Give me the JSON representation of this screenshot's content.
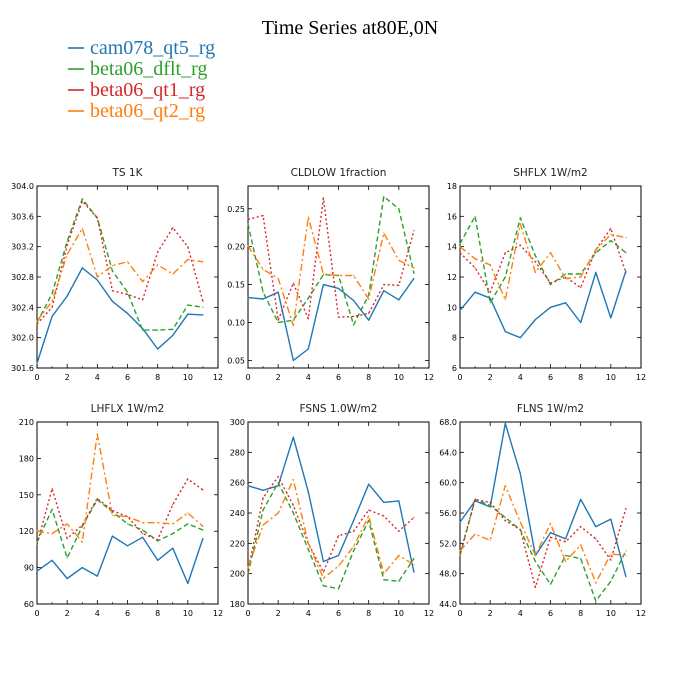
{
  "figure": {
    "title": "Time Series at80E,0N",
    "legend": [
      {
        "name": "cam078_qt5_rg",
        "color": "#1f77b4",
        "dash": "solid"
      },
      {
        "name": "beta06_dflt_rg",
        "color": "#2ca02c",
        "dash": "dashed"
      },
      {
        "name": "beta06_qt1_rg",
        "color": "#d62728",
        "dash": "dotted"
      },
      {
        "name": "beta06_qt2_rg",
        "color": "#ff7f0e",
        "dash": "dashdot"
      }
    ]
  },
  "chart_data": [
    {
      "type": "line",
      "title": "TS   1K",
      "xlim": [
        0,
        12
      ],
      "xticks": [
        0,
        2,
        4,
        6,
        8,
        10,
        12
      ],
      "ylim": [
        301.6,
        304.0
      ],
      "yticks": [
        "301.6",
        "302.0",
        "302.4",
        "302.8",
        "303.2",
        "303.6",
        "304.0"
      ],
      "x": [
        0,
        1,
        2,
        3,
        4,
        5,
        6,
        7,
        8,
        9,
        10,
        11
      ],
      "series": [
        {
          "name": "cam078_qt5_rg",
          "values": [
            301.66,
            302.28,
            302.55,
            302.92,
            302.76,
            302.48,
            302.32,
            302.12,
            301.85,
            302.03,
            302.31,
            302.3
          ]
        },
        {
          "name": "beta06_dflt_rg",
          "values": [
            302.2,
            302.58,
            303.27,
            303.83,
            303.58,
            302.88,
            302.6,
            302.1,
            302.1,
            302.11,
            302.43,
            302.4
          ]
        },
        {
          "name": "beta06_qt1_rg",
          "values": [
            302.18,
            302.4,
            303.22,
            303.8,
            303.58,
            302.62,
            302.57,
            302.5,
            303.13,
            303.45,
            303.2,
            302.48
          ]
        },
        {
          "name": "beta06_qt2_rg",
          "values": [
            302.22,
            302.48,
            303.1,
            303.44,
            302.8,
            302.95,
            303.0,
            302.74,
            302.96,
            302.84,
            303.03,
            303.0
          ]
        }
      ]
    },
    {
      "type": "line",
      "title": "CLDLOW   1fraction",
      "xlim": [
        0,
        12
      ],
      "xticks": [
        0,
        2,
        4,
        6,
        8,
        10,
        12
      ],
      "ylim": [
        0.04,
        0.28
      ],
      "yticks": [
        "0.05",
        "0.10",
        "0.15",
        "0.20",
        "0.25"
      ],
      "x": [
        0,
        1,
        2,
        3,
        4,
        5,
        6,
        7,
        8,
        9,
        10,
        11
      ],
      "series": [
        {
          "name": "cam078_qt5_rg",
          "values": [
            0.133,
            0.131,
            0.14,
            0.05,
            0.065,
            0.15,
            0.145,
            0.129,
            0.103,
            0.142,
            0.13,
            0.158
          ]
        },
        {
          "name": "beta06_dflt_rg",
          "values": [
            0.23,
            0.14,
            0.1,
            0.103,
            0.132,
            0.163,
            0.162,
            0.097,
            0.136,
            0.266,
            0.25,
            0.165
          ]
        },
        {
          "name": "beta06_qt1_rg",
          "values": [
            0.236,
            0.241,
            0.103,
            0.152,
            0.105,
            0.264,
            0.107,
            0.108,
            0.112,
            0.15,
            0.149,
            0.221
          ]
        },
        {
          "name": "beta06_qt2_rg",
          "values": [
            0.201,
            0.17,
            0.158,
            0.096,
            0.239,
            0.164,
            0.162,
            0.162,
            0.131,
            0.218,
            0.182,
            0.172
          ]
        }
      ]
    },
    {
      "type": "line",
      "title": "SHFLX   1W/m2",
      "xlim": [
        0,
        12
      ],
      "xticks": [
        0,
        2,
        4,
        6,
        8,
        10,
        12
      ],
      "ylim": [
        6,
        18
      ],
      "yticks": [
        "6",
        "8",
        "10",
        "12",
        "14",
        "16",
        "18"
      ],
      "x": [
        0,
        1,
        2,
        3,
        4,
        5,
        6,
        7,
        8,
        9,
        10,
        11
      ],
      "series": [
        {
          "name": "cam078_qt5_rg",
          "values": [
            9.8,
            11.0,
            10.6,
            8.4,
            8.0,
            9.2,
            10.0,
            10.3,
            9.0,
            12.3,
            9.3,
            12.4
          ]
        },
        {
          "name": "beta06_dflt_rg",
          "values": [
            14.2,
            16.0,
            10.3,
            12.0,
            15.9,
            13.4,
            11.5,
            12.2,
            12.2,
            13.6,
            14.4,
            13.6
          ]
        },
        {
          "name": "beta06_qt1_rg",
          "values": [
            13.6,
            12.6,
            11.0,
            13.6,
            14.1,
            13.0,
            11.6,
            12.0,
            11.3,
            13.8,
            15.2,
            12.3
          ]
        },
        {
          "name": "beta06_qt2_rg",
          "values": [
            14.0,
            13.2,
            12.8,
            10.5,
            15.5,
            12.3,
            13.6,
            11.9,
            12.0,
            13.8,
            14.8,
            14.6
          ]
        }
      ]
    },
    {
      "type": "line",
      "title": "LHFLX   1W/m2",
      "xlim": [
        0,
        12
      ],
      "xticks": [
        0,
        2,
        4,
        6,
        8,
        10,
        12
      ],
      "ylim": [
        60,
        210
      ],
      "yticks": [
        "60",
        "90",
        "120",
        "150",
        "180",
        "210"
      ],
      "x": [
        0,
        1,
        2,
        3,
        4,
        5,
        6,
        7,
        8,
        9,
        10,
        11
      ],
      "series": [
        {
          "name": "cam078_qt5_rg",
          "values": [
            87,
            96,
            81,
            90,
            83,
            116,
            108,
            115,
            96,
            106,
            77,
            114
          ]
        },
        {
          "name": "beta06_dflt_rg",
          "values": [
            111,
            138,
            98,
            124,
            146,
            136,
            126,
            121,
            112,
            118,
            126,
            121
          ]
        },
        {
          "name": "beta06_qt1_rg",
          "values": [
            109,
            155,
            114,
            125,
            147,
            137,
            132,
            118,
            113,
            142,
            163,
            154
          ]
        },
        {
          "name": "beta06_qt2_rg",
          "values": [
            120,
            118,
            126,
            111,
            200,
            133,
            132,
            127,
            127,
            126,
            135,
            124
          ]
        }
      ]
    },
    {
      "type": "line",
      "title": "FSNS   1.0W/m2",
      "xlim": [
        0,
        12
      ],
      "xticks": [
        0,
        2,
        4,
        6,
        8,
        10,
        12
      ],
      "ylim": [
        180,
        300
      ],
      "yticks": [
        "180",
        "200",
        "220",
        "240",
        "260",
        "280",
        "300"
      ],
      "x": [
        0,
        1,
        2,
        3,
        4,
        5,
        6,
        7,
        8,
        9,
        10,
        11
      ],
      "series": [
        {
          "name": "cam078_qt5_rg",
          "values": [
            258,
            255,
            258,
            290,
            254,
            208,
            212,
            235,
            259,
            247,
            248,
            201
          ]
        },
        {
          "name": "beta06_dflt_rg",
          "values": [
            200,
            242,
            260,
            240,
            216,
            192,
            190,
            215,
            235,
            196,
            195,
            210
          ]
        },
        {
          "name": "beta06_qt1_rg",
          "values": [
            202,
            250,
            264,
            245,
            220,
            201,
            225,
            228,
            242,
            238,
            228,
            237
          ]
        },
        {
          "name": "beta06_qt2_rg",
          "values": [
            204,
            232,
            240,
            262,
            220,
            197,
            205,
            218,
            238,
            200,
            212,
            206
          ]
        }
      ]
    },
    {
      "type": "line",
      "title": "FLNS   1W/m2",
      "xlim": [
        0,
        12
      ],
      "xticks": [
        0,
        2,
        4,
        6,
        8,
        10,
        12
      ],
      "ylim": [
        44,
        68
      ],
      "yticks": [
        "44.0",
        "48.0",
        "52.0",
        "56.0",
        "60.0",
        "64.0",
        "68.0"
      ],
      "x": [
        0,
        1,
        2,
        3,
        4,
        5,
        6,
        7,
        8,
        9,
        10,
        11
      ],
      "series": [
        {
          "name": "cam078_qt5_rg",
          "values": [
            54.8,
            57.6,
            56.8,
            67.8,
            61.2,
            50.4,
            53.4,
            52.6,
            57.8,
            54.2,
            55.2,
            47.6
          ]
        },
        {
          "name": "beta06_dflt_rg",
          "values": [
            50.4,
            57.8,
            57.0,
            55.4,
            53.8,
            49.6,
            46.6,
            50.4,
            50.0,
            44.4,
            47.0,
            51.0
          ]
        },
        {
          "name": "beta06_qt1_rg",
          "values": [
            50.6,
            57.8,
            57.4,
            55.0,
            53.8,
            46.2,
            52.8,
            52.2,
            54.2,
            52.6,
            49.8,
            56.6
          ]
        },
        {
          "name": "beta06_qt2_rg",
          "values": [
            51.0,
            53.2,
            52.4,
            59.6,
            54.8,
            50.4,
            54.6,
            49.6,
            51.8,
            46.8,
            50.6,
            50.4
          ]
        }
      ]
    }
  ]
}
